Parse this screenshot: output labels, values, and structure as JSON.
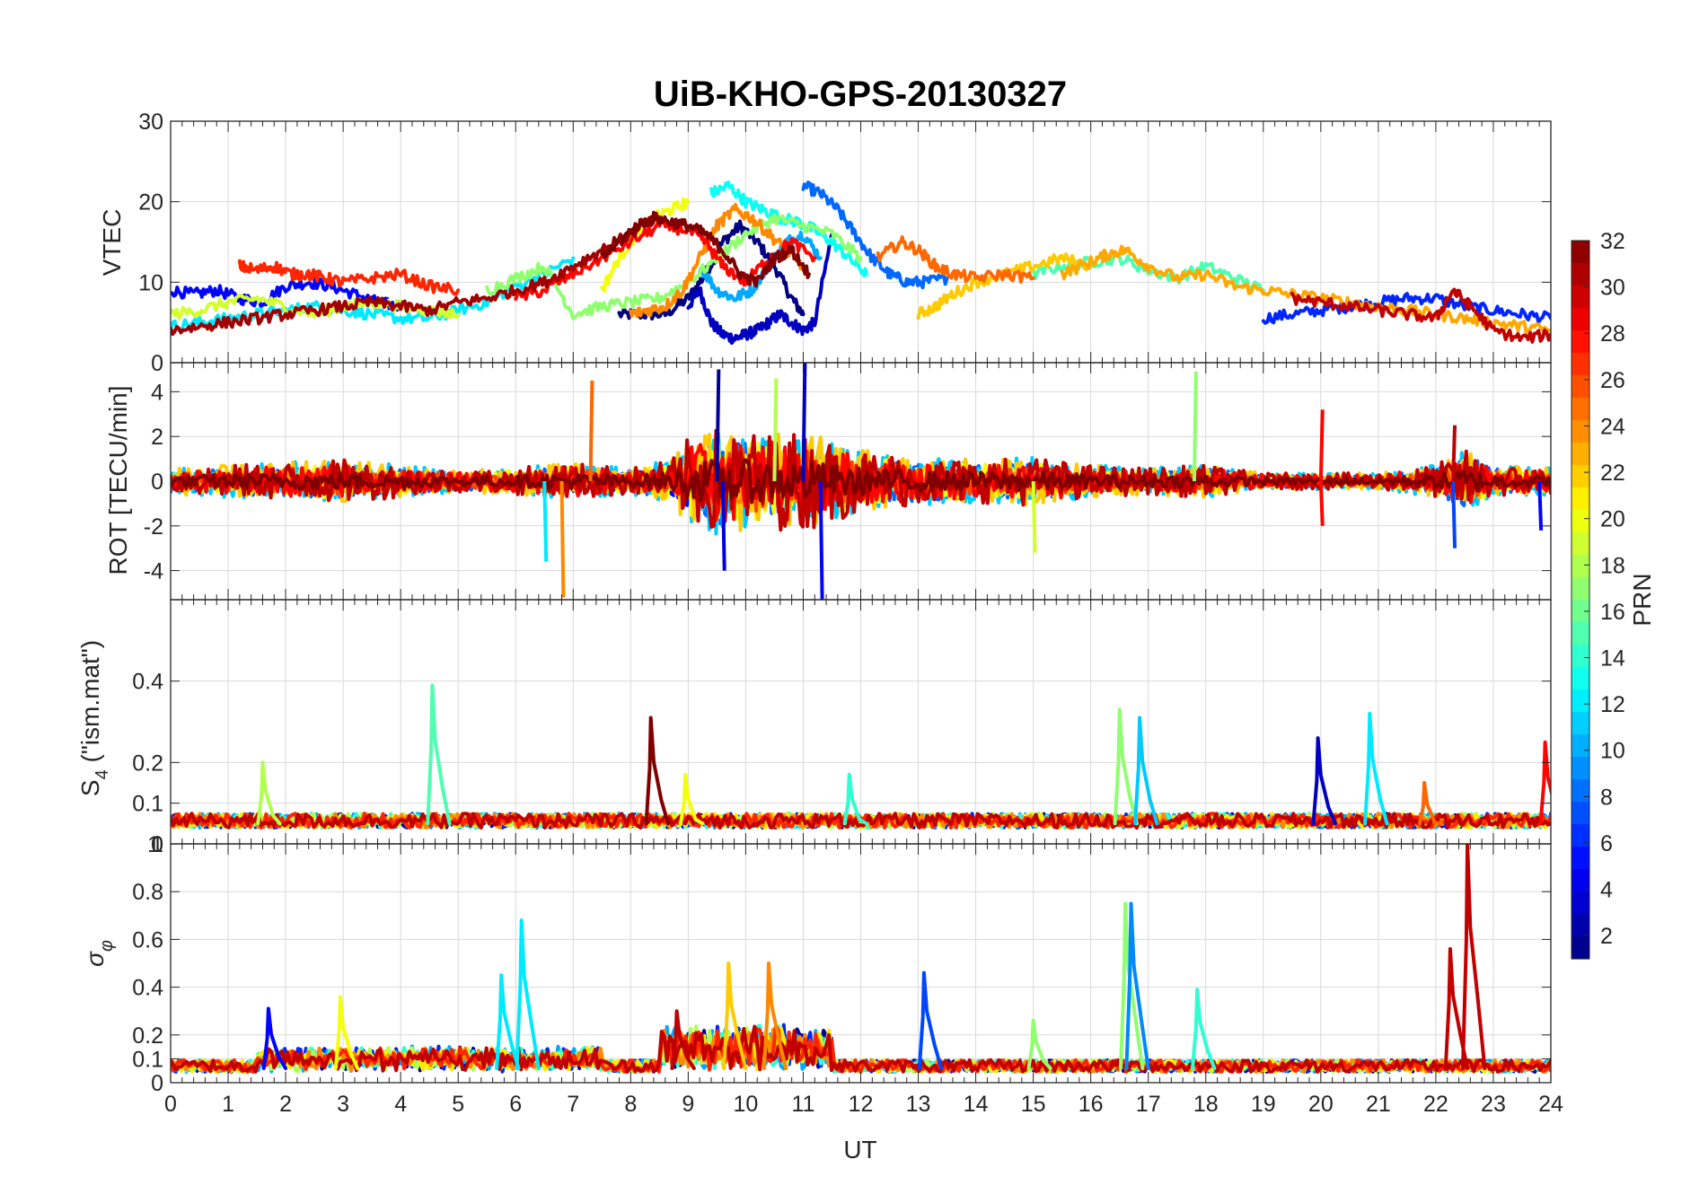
{
  "chart_data": [
    {
      "type": "line",
      "panel": "vtec",
      "title": "UiB-KHO-GPS-20130327",
      "ylabel": "VTEC",
      "xlabel": "",
      "xlim": [
        0,
        24
      ],
      "ylim": [
        0,
        30
      ],
      "yticks": [
        "0",
        "10",
        "20",
        "30"
      ],
      "grid": true,
      "series": [
        {
          "prn": 1,
          "x": [
            7.8,
            8.2,
            8.6,
            9.0,
            9.3,
            9.6,
            9.9,
            10.2,
            10.5,
            10.8,
            11.0
          ],
          "y": [
            6,
            6,
            6,
            8,
            11,
            15,
            17,
            15,
            12,
            8,
            6
          ]
        },
        {
          "prn": 3,
          "x": [
            9.0,
            9.2,
            9.4,
            9.6,
            9.8,
            10.0,
            10.2,
            10.4,
            10.6,
            10.8,
            11.0,
            11.2,
            11.5
          ],
          "y": [
            7,
            9,
            5,
            3.5,
            3,
            3.5,
            4,
            5,
            6,
            5,
            4,
            5,
            16
          ]
        },
        {
          "prn": 5,
          "x": [
            0.0,
            0.4,
            0.8,
            1.2,
            1.6,
            2.0,
            2.4,
            2.8,
            3.2,
            3.6,
            4.0
          ],
          "y": [
            9,
            8.5,
            9,
            8,
            7.5,
            9.5,
            10,
            9.5,
            8.5,
            7.5,
            7
          ]
        },
        {
          "prn": 6,
          "x": [
            19.0,
            19.5,
            20.0,
            20.5,
            21.0,
            21.5,
            22.0,
            22.5,
            23.0,
            23.5,
            24.0
          ],
          "y": [
            5.5,
            6,
            6.5,
            7,
            7.5,
            8,
            8,
            7,
            6.5,
            6,
            5.5
          ]
        },
        {
          "prn": 8,
          "x": [
            11.0,
            11.3,
            11.6,
            11.9,
            12.2,
            12.5,
            12.8,
            13.1,
            13.5
          ],
          "y": [
            22,
            21,
            19,
            16,
            13,
            11,
            10,
            10,
            10.5
          ]
        },
        {
          "prn": 10,
          "x": [
            9.2,
            9.5,
            9.8,
            10.1,
            10.4,
            10.7,
            11.0,
            11.3
          ],
          "y": [
            12,
            9,
            8,
            9,
            12,
            15,
            16,
            13
          ]
        },
        {
          "prn": 12,
          "x": [
            0.0,
            0.5,
            1.0,
            1.5,
            2.0,
            2.5,
            3.0,
            3.5,
            4.0,
            4.5,
            5.0,
            5.5,
            6.0,
            6.5,
            7.0
          ],
          "y": [
            4.5,
            5,
            5.5,
            6,
            6.5,
            7,
            6.5,
            6,
            5.5,
            5.5,
            6.5,
            7.5,
            9.5,
            11,
            13
          ]
        },
        {
          "prn": 13,
          "x": [
            9.4,
            9.7,
            10.0,
            10.3,
            10.6,
            10.9,
            11.2,
            11.5,
            11.8,
            12.1
          ],
          "y": [
            21,
            22,
            20,
            19,
            18,
            17.5,
            16.5,
            15,
            13,
            11
          ]
        },
        {
          "prn": 15,
          "x": [
            15.0,
            15.5,
            16.0,
            16.5,
            17.0,
            17.5,
            18.0,
            18.5,
            19.0
          ],
          "y": [
            11,
            12,
            12.5,
            13,
            11.5,
            10.5,
            12,
            10.5,
            9
          ]
        },
        {
          "prn": 17,
          "x": [
            5.5,
            6.0,
            6.5,
            7.0,
            7.5,
            8.0,
            8.5,
            9.0,
            9.5,
            10.0,
            10.5,
            11.0,
            11.5,
            12.0
          ],
          "y": [
            9,
            10.5,
            12,
            6,
            7,
            7.5,
            8,
            10,
            13,
            16,
            18,
            17,
            16,
            13
          ]
        },
        {
          "prn": 19,
          "x": [
            0.0,
            0.5,
            1.0,
            1.5,
            2.0,
            2.5,
            3.0,
            3.5,
            4.0,
            4.5,
            5.0
          ],
          "y": [
            6,
            6.5,
            7.5,
            8,
            7,
            6,
            7,
            7.5,
            7,
            6.5,
            6
          ]
        },
        {
          "prn": 20,
          "x": [
            7.5,
            7.8,
            8.1,
            8.4,
            8.7,
            9.0
          ],
          "y": [
            9,
            13,
            16,
            18,
            19,
            20
          ]
        },
        {
          "prn": 22,
          "x": [
            13.0,
            13.3,
            13.6,
            14.0,
            14.5,
            15.0,
            15.5,
            16.0
          ],
          "y": [
            6,
            7,
            8.5,
            10,
            11,
            12,
            13,
            12
          ]
        },
        {
          "prn": 23,
          "x": [
            15.5,
            16.0,
            16.3,
            16.6,
            17.0,
            17.5,
            18.0,
            18.5,
            19.0,
            19.5,
            20.0,
            20.5,
            21.0,
            21.5,
            22.0,
            22.5,
            23.0,
            23.5,
            24.0
          ],
          "y": [
            11,
            12.5,
            13.5,
            14,
            12,
            10.5,
            11,
            9.5,
            9,
            8.5,
            8,
            7.5,
            7,
            6.5,
            6,
            5.5,
            5,
            4.5,
            4
          ]
        },
        {
          "prn": 24,
          "x": [
            8.0,
            8.3,
            8.6,
            8.9,
            9.2,
            9.5,
            9.8,
            10.1,
            10.4,
            10.7,
            11.0
          ],
          "y": [
            6,
            6.5,
            7,
            9,
            13,
            17,
            19,
            18,
            16,
            14,
            12
          ]
        },
        {
          "prn": 25,
          "x": [
            12.3,
            12.7,
            13.0,
            13.3,
            13.6,
            14.0,
            14.5,
            15.0
          ],
          "y": [
            13,
            15,
            14,
            12,
            11,
            10.5,
            11,
            10.5
          ]
        },
        {
          "prn": 27,
          "x": [
            1.2,
            1.5,
            1.8,
            2.1,
            2.4,
            2.7,
            3.0,
            3.5,
            4.0,
            4.5,
            5.0
          ],
          "y": [
            12,
            11.5,
            12,
            11,
            11,
            10.5,
            10,
            10.5,
            11,
            9.5,
            9
          ]
        },
        {
          "prn": 28,
          "x": [
            6.0,
            6.5,
            7.0,
            7.5,
            8.0,
            8.5,
            9.0,
            9.3,
            9.6,
            10.0,
            10.4,
            10.8,
            11.2
          ],
          "y": [
            8,
            9,
            11,
            13,
            15,
            17,
            16.5,
            15,
            12,
            10,
            13,
            15,
            13
          ]
        },
        {
          "prn": 30,
          "x": [
            19.5,
            20.0,
            20.5,
            21.0,
            21.5,
            22.0,
            22.3,
            22.6,
            23.0,
            23.5,
            24.0
          ],
          "y": [
            8,
            7.5,
            7,
            6.5,
            6,
            5.5,
            9,
            7,
            4,
            3,
            3.5
          ]
        },
        {
          "prn": 31,
          "x": [
            0.0,
            0.5,
            1.0,
            1.5,
            2.0,
            2.5,
            3.0,
            3.5,
            4.0,
            4.5,
            5.0,
            5.5,
            6.0,
            6.5,
            7.0,
            7.5,
            8.0,
            8.5
          ],
          "y": [
            4,
            4.5,
            5,
            5.5,
            6,
            6.5,
            7,
            7.5,
            7,
            6.5,
            7.5,
            8,
            9,
            10,
            12,
            14,
            16,
            18
          ]
        },
        {
          "prn": 32,
          "x": [
            7.5,
            7.8,
            8.1,
            8.4,
            8.7,
            9.0,
            9.3,
            9.6,
            9.9,
            10.2,
            10.5,
            10.8,
            11.1
          ],
          "y": [
            13,
            15,
            17,
            18,
            17.5,
            17,
            16,
            14,
            11,
            10,
            13,
            14,
            11
          ]
        }
      ]
    },
    {
      "type": "line",
      "panel": "rot",
      "ylabel": "ROT [TECU/min]",
      "xlabel": "",
      "xlim": [
        0,
        24
      ],
      "ylim": [
        -5.3,
        5.3
      ],
      "yticks": [
        "-4",
        "-2",
        "0",
        "2",
        "4"
      ],
      "grid": true,
      "noise_profile": {
        "x": [
          0,
          1,
          2,
          3,
          4,
          5,
          6,
          7,
          8,
          8.7,
          9.0,
          9.5,
          10,
          10.5,
          11,
          11.5,
          12,
          13,
          14,
          15,
          16,
          17,
          18,
          19,
          20,
          21,
          22,
          22.5,
          23,
          24
        ],
        "amplitude": [
          0.5,
          0.6,
          0.7,
          0.8,
          0.6,
          0.4,
          0.5,
          0.7,
          0.5,
          0.8,
          1.6,
          2.0,
          1.9,
          1.8,
          1.9,
          1.5,
          1.2,
          0.9,
          0.8,
          0.9,
          0.6,
          0.5,
          0.6,
          0.3,
          0.3,
          0.3,
          0.6,
          1.2,
          0.6,
          0.5
        ]
      },
      "spikes": [
        {
          "x": 6.8,
          "y": -5.2,
          "prn": 24
        },
        {
          "x": 7.3,
          "y": 4.5,
          "prn": 25
        },
        {
          "x": 9.5,
          "y": 5.0,
          "prn": 2
        },
        {
          "x": 9.6,
          "y": -4.0,
          "prn": 4
        },
        {
          "x": 10.5,
          "y": 4.6,
          "prn": 18
        },
        {
          "x": 11.0,
          "y": 5.3,
          "prn": 3
        },
        {
          "x": 11.3,
          "y": -5.3,
          "prn": 5
        },
        {
          "x": 17.8,
          "y": 4.9,
          "prn": 17
        },
        {
          "x": 20.0,
          "y": 3.2,
          "prn": 28
        },
        {
          "x": 20.0,
          "y": -2.0,
          "prn": 28
        },
        {
          "x": 22.3,
          "y": 2.5,
          "prn": 30
        },
        {
          "x": 22.3,
          "y": -3.0,
          "prn": 7
        },
        {
          "x": 23.8,
          "y": -2.2,
          "prn": 5
        },
        {
          "x": 6.5,
          "y": -3.6,
          "prn": 12
        },
        {
          "x": 15.0,
          "y": -3.2,
          "prn": 19
        }
      ]
    },
    {
      "type": "line",
      "panel": "s4",
      "ylabel": "S4 (\"ism.mat\")",
      "xlabel": "",
      "xlim": [
        0,
        24
      ],
      "ylim": [
        0,
        0.6
      ],
      "yticks": [
        "0",
        "0.1",
        "0.2",
        "0.4"
      ],
      "grid": true,
      "baseline": 0.05,
      "peaks": [
        {
          "x": 1.6,
          "y": 0.2,
          "prn": 18
        },
        {
          "x": 4.55,
          "y": 0.39,
          "prn": 15
        },
        {
          "x": 8.35,
          "y": 0.31,
          "prn": 32
        },
        {
          "x": 8.95,
          "y": 0.17,
          "prn": 20
        },
        {
          "x": 11.8,
          "y": 0.17,
          "prn": 14
        },
        {
          "x": 16.5,
          "y": 0.33,
          "prn": 17
        },
        {
          "x": 16.85,
          "y": 0.31,
          "prn": 11
        },
        {
          "x": 19.95,
          "y": 0.26,
          "prn": 3
        },
        {
          "x": 20.85,
          "y": 0.32,
          "prn": 12
        },
        {
          "x": 21.8,
          "y": 0.15,
          "prn": 25
        },
        {
          "x": 23.9,
          "y": 0.25,
          "prn": 28
        }
      ]
    },
    {
      "type": "line",
      "panel": "sigma_phi",
      "ylabel": "σφ",
      "xlabel": "UT",
      "xlim": [
        0,
        24
      ],
      "ylim": [
        0,
        1
      ],
      "xticks": [
        "0",
        "1",
        "2",
        "3",
        "4",
        "5",
        "6",
        "7",
        "8",
        "9",
        "10",
        "11",
        "12",
        "13",
        "14",
        "15",
        "16",
        "17",
        "18",
        "19",
        "20",
        "21",
        "22",
        "23",
        "24"
      ],
      "yticks": [
        "0",
        "0.1",
        "0.2",
        "0.4",
        "0.6",
        "0.8",
        "1"
      ],
      "grid": true,
      "baseline": 0.06,
      "peaks": [
        {
          "x": 1.7,
          "y": 0.31,
          "prn": 5
        },
        {
          "x": 2.95,
          "y": 0.36,
          "prn": 20
        },
        {
          "x": 5.75,
          "y": 0.45,
          "prn": 12
        },
        {
          "x": 6.1,
          "y": 0.68,
          "prn": 12
        },
        {
          "x": 8.8,
          "y": 0.3,
          "prn": 30
        },
        {
          "x": 9.7,
          "y": 0.5,
          "prn": 22
        },
        {
          "x": 10.4,
          "y": 0.5,
          "prn": 24
        },
        {
          "x": 13.1,
          "y": 0.46,
          "prn": 7
        },
        {
          "x": 15.0,
          "y": 0.26,
          "prn": 17
        },
        {
          "x": 16.6,
          "y": 0.75,
          "prn": 17
        },
        {
          "x": 16.7,
          "y": 0.75,
          "prn": 9
        },
        {
          "x": 17.85,
          "y": 0.39,
          "prn": 14
        },
        {
          "x": 22.25,
          "y": 0.56,
          "prn": 30
        },
        {
          "x": 22.55,
          "y": 1.0,
          "prn": 30
        }
      ]
    }
  ],
  "colorbar": {
    "label": "PRN",
    "min": 1,
    "max": 32,
    "ticks": [
      "2",
      "4",
      "6",
      "8",
      "10",
      "12",
      "14",
      "16",
      "18",
      "20",
      "22",
      "24",
      "26",
      "28",
      "30",
      "32"
    ],
    "colormap": "jet"
  },
  "labels": {
    "title": "UiB-KHO-GPS-20130327",
    "vtec_ylabel": "VTEC",
    "rot_ylabel": "ROT [TECU/min]",
    "s4_ylabel_main": "S",
    "s4_ylabel_sub": "4",
    "s4_ylabel_rest": " (\"ism.mat\")",
    "sigma_ylabel_main": "σ",
    "sigma_ylabel_sub": "φ",
    "xlabel": "UT",
    "colorbar_label": "PRN",
    "s4_overlap_tick_a": "0",
    "s4_overlap_tick_b": "1"
  }
}
